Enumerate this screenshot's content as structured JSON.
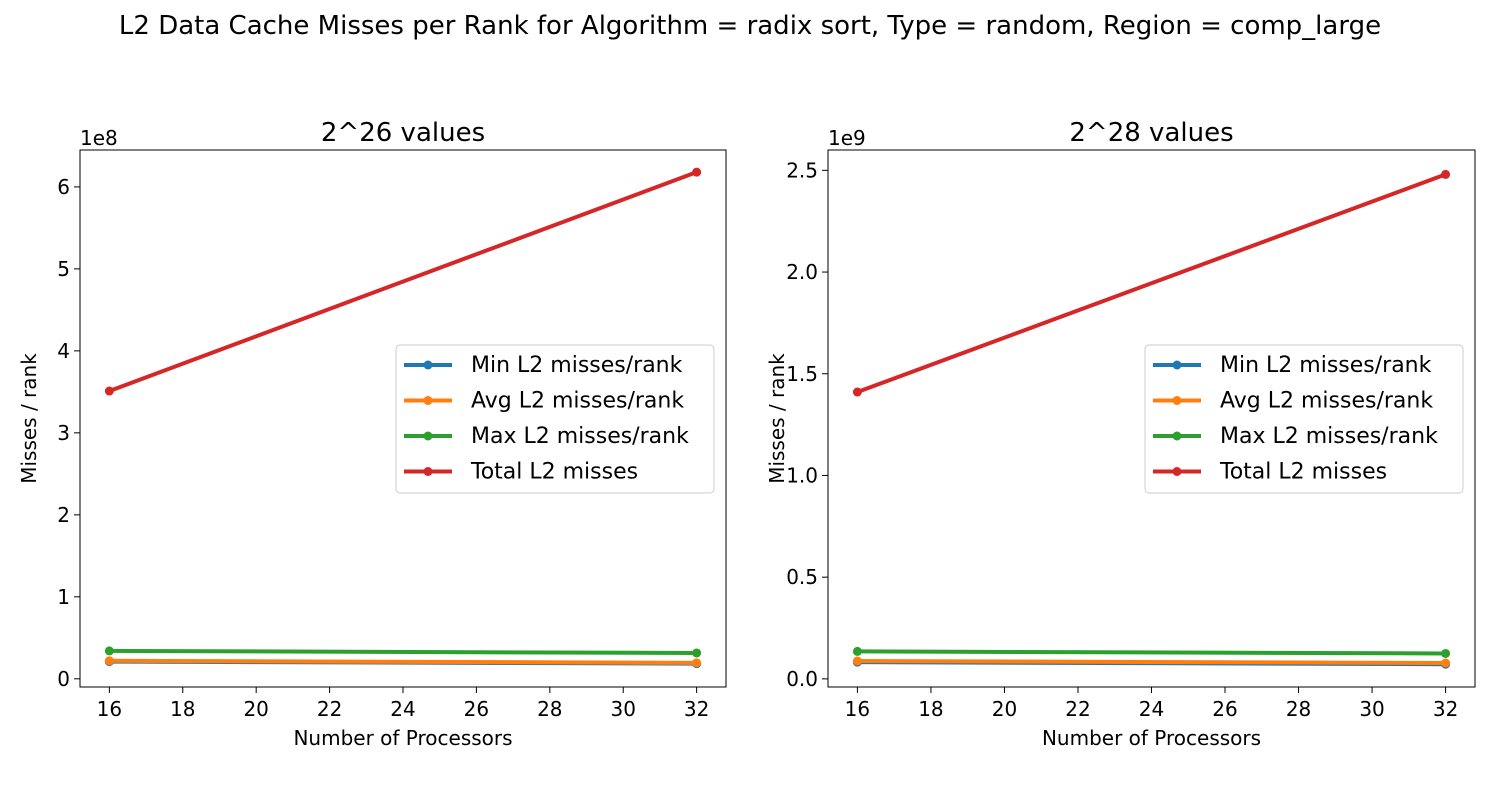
{
  "figure": {
    "suptitle": "L2 Data Cache Misses per Rank for Algorithm = radix sort, Type = random, Region = comp_large"
  },
  "chart_data": [
    {
      "type": "line",
      "title": "2^26 values",
      "xlabel": "Number of Processors",
      "ylabel": "Misses / rank",
      "offset_text": "1e8",
      "xlim": [
        15.2,
        32.8
      ],
      "ylim": [
        -10000000,
        645000000
      ],
      "xticks": [
        16,
        18,
        20,
        22,
        24,
        26,
        28,
        30,
        32
      ],
      "yticks": [
        0,
        100000000,
        200000000,
        300000000,
        400000000,
        500000000,
        600000000
      ],
      "ytick_labels": [
        "0",
        "1",
        "2",
        "3",
        "4",
        "5",
        "6"
      ],
      "grid": false,
      "legend": "center-right",
      "x": [
        16,
        32
      ],
      "series": [
        {
          "name": "Min L2 misses/rank",
          "color": "#1f77b4",
          "values": [
            21000000,
            18500000
          ]
        },
        {
          "name": "Avg L2 misses/rank",
          "color": "#ff7f0e",
          "values": [
            22000000,
            19500000
          ]
        },
        {
          "name": "Max L2 misses/rank",
          "color": "#2ca02c",
          "values": [
            34000000,
            31500000
          ]
        },
        {
          "name": "Total L2 misses",
          "color": "#d62728",
          "values": [
            351000000,
            618000000
          ]
        }
      ]
    },
    {
      "type": "line",
      "title": "2^28 values",
      "xlabel": "Number of Processors",
      "ylabel": "Misses / rank",
      "offset_text": "1e9",
      "xlim": [
        15.2,
        32.8
      ],
      "ylim": [
        -40000000,
        2600000000
      ],
      "xticks": [
        16,
        18,
        20,
        22,
        24,
        26,
        28,
        30,
        32
      ],
      "yticks": [
        0,
        500000000,
        1000000000,
        1500000000,
        2000000000,
        2500000000
      ],
      "ytick_labels": [
        "0.0",
        "0.5",
        "1.0",
        "1.5",
        "2.0",
        "2.5"
      ],
      "grid": false,
      "legend": "center-right",
      "x": [
        16,
        32
      ],
      "series": [
        {
          "name": "Min L2 misses/rank",
          "color": "#1f77b4",
          "values": [
            82000000,
            72000000
          ]
        },
        {
          "name": "Avg L2 misses/rank",
          "color": "#ff7f0e",
          "values": [
            88000000,
            78000000
          ]
        },
        {
          "name": "Max L2 misses/rank",
          "color": "#2ca02c",
          "values": [
            135000000,
            125000000
          ]
        },
        {
          "name": "Total L2 misses",
          "color": "#d62728",
          "values": [
            1410000000,
            2480000000
          ]
        }
      ]
    }
  ]
}
